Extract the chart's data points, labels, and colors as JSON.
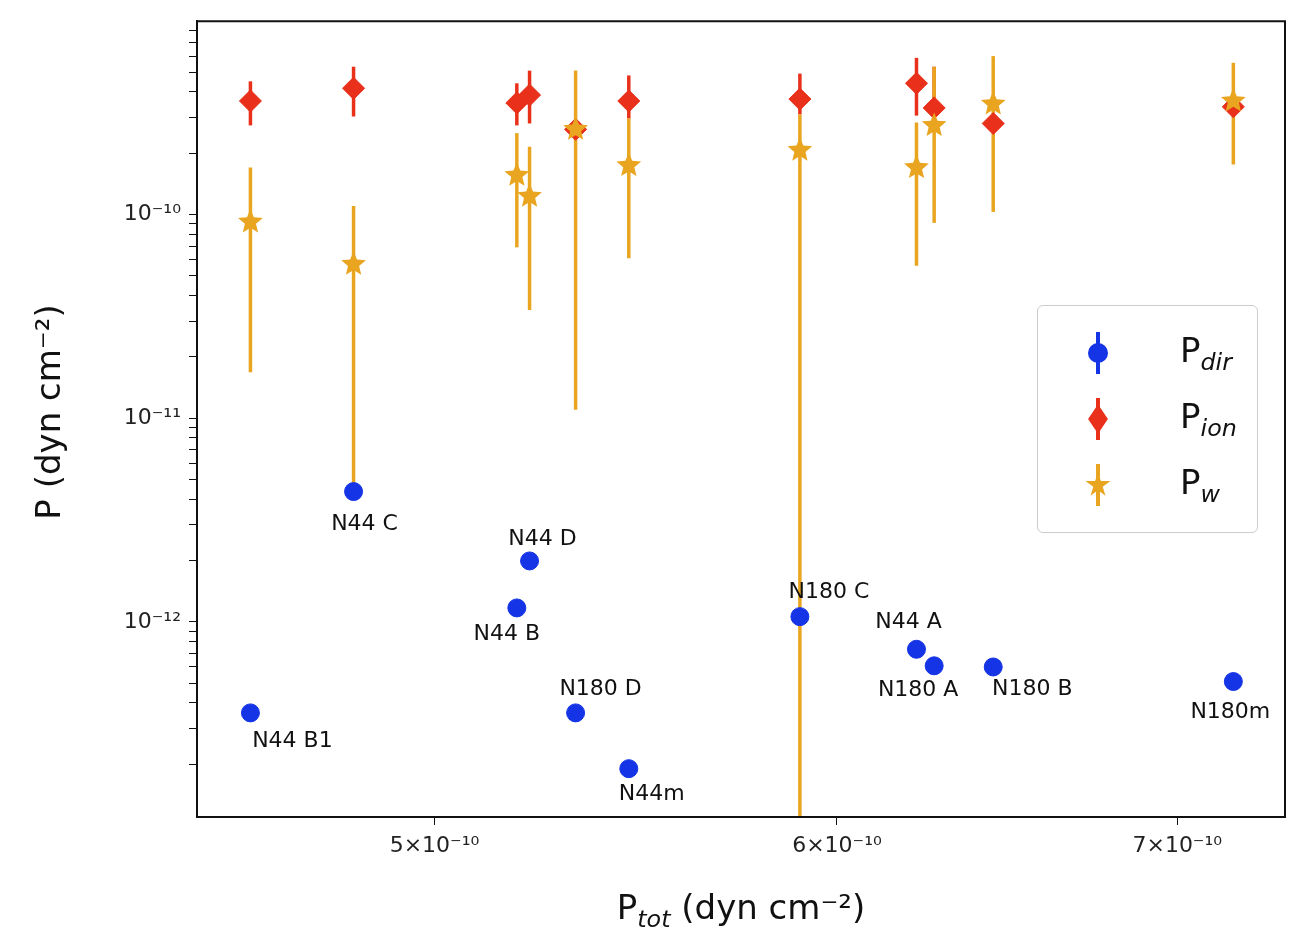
{
  "chart_data": {
    "type": "scatter",
    "xlabel": "P$_{tot}$ (dyn cm⁻²)",
    "ylabel": "P (dyn cm⁻²)",
    "log": "xy",
    "grid": false,
    "legend": "right",
    "x": [
      4.6e-10,
      4.82e-10,
      5.19e-10,
      5.22e-10,
      5.33e-10,
      5.46e-10,
      5.9e-10,
      6.22e-10,
      6.27e-10,
      6.44e-10,
      7.18e-10
    ],
    "xlim": [
      4.49e-10,
      7.35e-10
    ],
    "xticks": [
      {
        "value": 5e-10,
        "label": "5×10⁻¹⁰"
      },
      {
        "value": 6e-10,
        "label": "6×10⁻¹⁰"
      },
      {
        "value": 7e-10,
        "label": "7×10⁻¹⁰"
      }
    ],
    "ylim": [
      1.1e-13,
      8.9e-10
    ],
    "yticks": [
      {
        "value": 2e-13,
        "label": null
      },
      {
        "value": 3e-13,
        "label": null
      },
      {
        "value": 4e-13,
        "label": null
      },
      {
        "value": 5e-13,
        "label": null
      },
      {
        "value": 6e-13,
        "label": null
      },
      {
        "value": 7e-13,
        "label": null
      },
      {
        "value": 8e-13,
        "label": null
      },
      {
        "value": 9e-13,
        "label": null
      },
      {
        "value": 1e-12,
        "label": "10⁻¹²"
      },
      {
        "value": 2e-12,
        "label": null
      },
      {
        "value": 3e-12,
        "label": null
      },
      {
        "value": 4e-12,
        "label": null
      },
      {
        "value": 5e-12,
        "label": null
      },
      {
        "value": 6e-12,
        "label": null
      },
      {
        "value": 7e-12,
        "label": null
      },
      {
        "value": 8e-12,
        "label": null
      },
      {
        "value": 9e-12,
        "label": null
      },
      {
        "value": 1e-11,
        "label": "10⁻¹¹"
      },
      {
        "value": 2e-11,
        "label": null
      },
      {
        "value": 3e-11,
        "label": null
      },
      {
        "value": 4e-11,
        "label": null
      },
      {
        "value": 5e-11,
        "label": null
      },
      {
        "value": 6e-11,
        "label": null
      },
      {
        "value": 7e-11,
        "label": null
      },
      {
        "value": 8e-11,
        "label": null
      },
      {
        "value": 9e-11,
        "label": null
      },
      {
        "value": 1e-10,
        "label": "10⁻¹⁰"
      },
      {
        "value": 2e-10,
        "label": null
      },
      {
        "value": 3e-10,
        "label": null
      },
      {
        "value": 4e-10,
        "label": null
      },
      {
        "value": 5e-10,
        "label": null
      },
      {
        "value": 6e-10,
        "label": null
      },
      {
        "value": 7e-10,
        "label": null
      },
      {
        "value": 8e-10,
        "label": null
      }
    ],
    "series": [
      {
        "name": "P$_{dir}$",
        "color": "#1434e6",
        "marker": "circle",
        "values": [
          3.57e-13,
          4.36e-12,
          1.17e-12,
          1.99e-12,
          3.57e-13,
          1.9e-13,
          1.06e-12,
          7.33e-13,
          6.08e-13,
          6e-13,
          5.09e-13
        ]
      },
      {
        "name": "P$_{ion}$",
        "color": "#e8301a",
        "marker": "diamond",
        "values": [
          3.61e-10,
          4.17e-10,
          3.53e-10,
          3.86e-10,
          2.62e-10,
          3.61e-10,
          3.69e-10,
          4.41e-10,
          3.34e-10,
          2.8e-10,
          3.38e-10
        ],
        "errors": [
          [
            2.74e-10,
            4.51e-10
          ],
          [
            3.03e-10,
            5.32e-10
          ],
          [
            2.74e-10,
            4.41e-10
          ],
          [
            2.8e-10,
            5.09e-10
          ],
          null,
          [
            2.96e-10,
            4.82e-10
          ],
          [
            3.1e-10,
            4.92e-10
          ],
          [
            3.06e-10,
            5.88e-10
          ],
          [
            3.34e-10,
            5.32e-10
          ],
          null,
          null
        ]
      },
      {
        "name": "P$_{w}$",
        "color": "#e9a520",
        "marker": "star",
        "values": [
          9.2e-11,
          5.7e-11,
          1.56e-10,
          1.23e-10,
          2.62e-10,
          1.74e-10,
          2.07e-10,
          1.7e-10,
          2.74e-10,
          3.49e-10,
          3.61e-10
        ],
        "errors": [
          [
            1.68e-11,
            1.7e-10
          ],
          [
            4.6e-12,
            1.1e-10
          ],
          [
            6.9e-11,
            2.51e-10
          ],
          [
            3.4e-11,
            2.15e-10
          ],
          [
            1.1e-11,
            5.09e-10
          ],
          [
            6.1e-11,
            2.96e-10
          ],
          [
            1.1e-13,
            3.1e-10
          ],
          [
            5.6e-11,
            2.83e-10
          ],
          [
            9.1e-11,
            5.32e-10
          ],
          [
            1.03e-10,
            6e-10
          ],
          [
            1.76e-10,
            5.56e-10
          ]
        ]
      }
    ],
    "annotations": [
      {
        "text": "N44 B1",
        "x": 4.6e-10,
        "y": 3.57e-13
      },
      {
        "text": "N44 C",
        "x": 4.82e-10,
        "y": 4.36e-12
      },
      {
        "text": "N44 B",
        "x": 5.19e-10,
        "y": 1.17e-12
      },
      {
        "text": "N44 D",
        "x": 5.22e-10,
        "y": 1.99e-12
      },
      {
        "text": "N180 D",
        "x": 5.33e-10,
        "y": 3.57e-13
      },
      {
        "text": "N44m",
        "x": 5.46e-10,
        "y": 1.9e-13
      },
      {
        "text": "N180 C",
        "x": 5.9e-10,
        "y": 1.06e-12
      },
      {
        "text": "N44 A",
        "x": 6.22e-10,
        "y": 7.33e-13
      },
      {
        "text": "N180 A",
        "x": 6.27e-10,
        "y": 6.08e-13
      },
      {
        "text": "N180 B",
        "x": 6.44e-10,
        "y": 6e-13
      },
      {
        "text": "N180m",
        "x": 7.18e-10,
        "y": 5.09e-13
      }
    ]
  }
}
